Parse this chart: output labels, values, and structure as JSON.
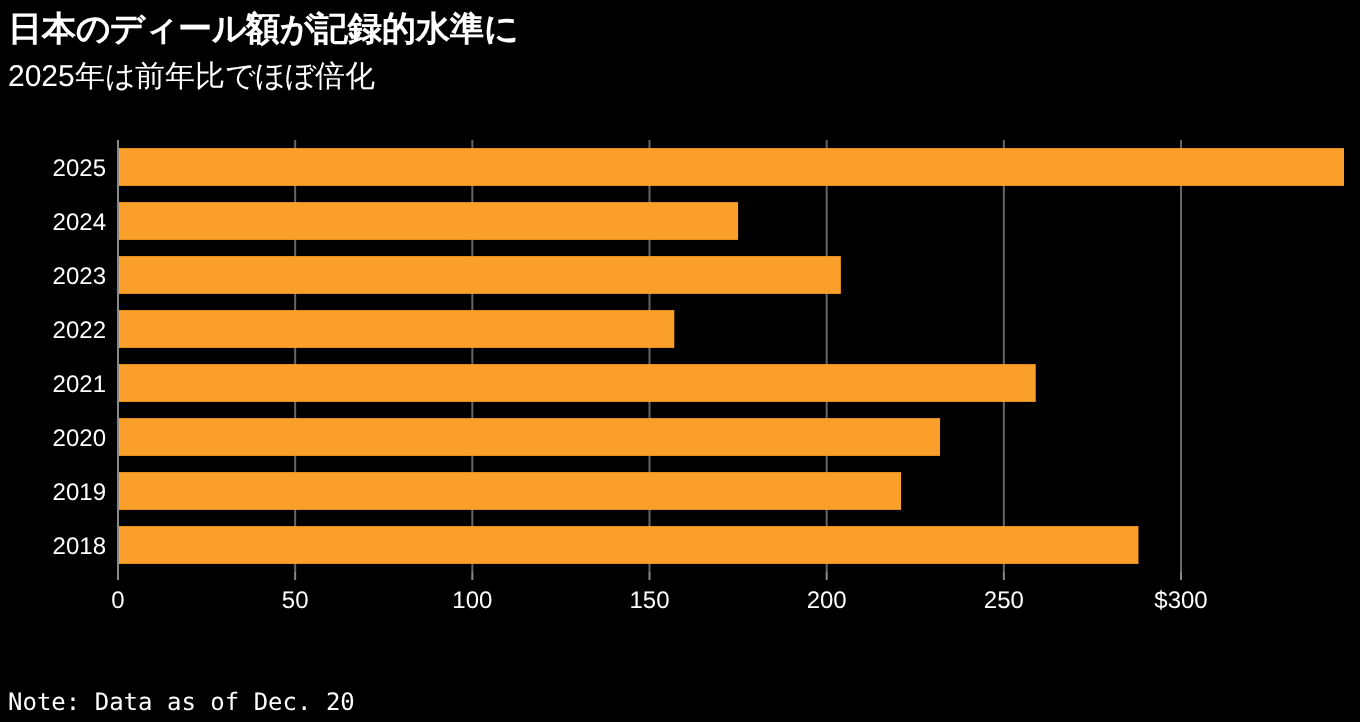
{
  "chart_data": {
    "type": "bar",
    "orientation": "horizontal",
    "title": "日本のディール額が記録的水準に",
    "subtitle": "2025年は前年比でほぼ倍化",
    "categories": [
      "2025",
      "2024",
      "2023",
      "2022",
      "2021",
      "2020",
      "2019",
      "2018"
    ],
    "series": [
      {
        "color": "#f99f2a",
        "values": [
          346,
          175,
          204,
          157,
          259,
          232,
          221,
          288
        ]
      }
    ],
    "xlim": [
      0,
      346
    ],
    "xticks": [
      0,
      50,
      100,
      150,
      200,
      250,
      {
        "value": 300,
        "label": "$300"
      }
    ],
    "grid": "x",
    "annotations": [
      "Note: Data as of Dec. 20"
    ]
  }
}
